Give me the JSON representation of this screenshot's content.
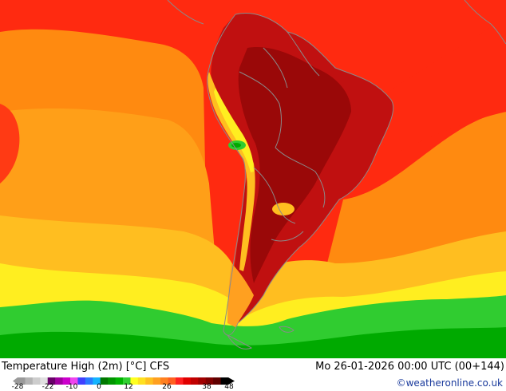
{
  "map": {
    "title": "Temperature High (2m) [°C] CFS",
    "datetime": "Mo 26-01-2026 00:00 UTC (00+144)",
    "credit": "©weatheronline.co.uk",
    "legend": {
      "ticks": [
        "-28",
        "-22",
        "-10",
        "0",
        "12",
        "26",
        "38",
        "48"
      ],
      "colors": [
        "#9a9a9a",
        "#b4b4b4",
        "#cdcdcd",
        "#e0e0e0",
        "#6b006b",
        "#a000a0",
        "#cc00cc",
        "#ee44ee",
        "#4040ff",
        "#2a7bff",
        "#14b4ff",
        "#007800",
        "#009600",
        "#00b400",
        "#30d030",
        "#ffff20",
        "#ffe020",
        "#ffc020",
        "#ffa020",
        "#ff8020",
        "#ff6020",
        "#ff2020",
        "#e00000",
        "#c00000",
        "#a00000",
        "#800000",
        "#600000",
        "#000000"
      ]
    },
    "palette": {
      "ocean_hot": "#ff2a10",
      "warm": "#ff8a10",
      "orange": "#ff9f18",
      "amber": "#ffbe20",
      "yellow": "#ffee20",
      "green_light": "#30cc30",
      "green": "#00aa00",
      "land_hot": "#c01010",
      "land_very_hot": "#9a0808",
      "border": "#8a8a8a"
    }
  }
}
